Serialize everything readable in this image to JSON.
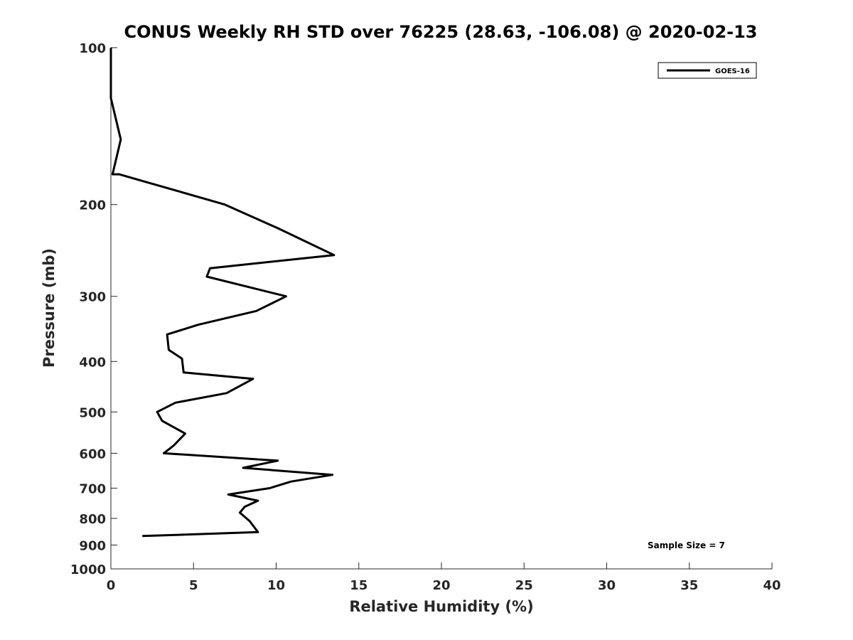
{
  "chart_data": {
    "type": "line",
    "title": "CONUS Weekly RH STD over 76225 (28.63, -106.08) @ 2020-02-13",
    "xlabel": "Relative Humidity (%)",
    "ylabel": "Pressure (mb)",
    "xlim": [
      0,
      40
    ],
    "ylim": [
      100,
      1000
    ],
    "y_scale": "log",
    "y_reversed": true,
    "x_ticks": [
      0,
      5,
      10,
      15,
      20,
      25,
      30,
      35,
      40
    ],
    "y_ticks": [
      100,
      200,
      300,
      400,
      500,
      600,
      700,
      800,
      900,
      1000
    ],
    "grid": false,
    "legend_position": "top-right",
    "series": [
      {
        "name": "GOES-16",
        "color": "#000000",
        "points": [
          [
            0,
            100
          ],
          [
            0,
            125
          ],
          [
            0.6,
            150
          ],
          [
            0.1,
            175
          ],
          [
            0.5,
            175
          ],
          [
            6.9,
            200
          ],
          [
            10.1,
            222
          ],
          [
            13.5,
            250
          ],
          [
            6.0,
            265
          ],
          [
            5.8,
            275
          ],
          [
            10.6,
            300
          ],
          [
            8.8,
            320
          ],
          [
            5.3,
            340
          ],
          [
            3.4,
            355
          ],
          [
            3.5,
            380
          ],
          [
            4.3,
            395
          ],
          [
            4.4,
            420
          ],
          [
            8.6,
            432
          ],
          [
            7.0,
            460
          ],
          [
            3.9,
            480
          ],
          [
            2.8,
            500
          ],
          [
            3.1,
            520
          ],
          [
            4.5,
            550
          ],
          [
            3.8,
            580
          ],
          [
            3.2,
            600
          ],
          [
            10.1,
            620
          ],
          [
            8.0,
            640
          ],
          [
            13.4,
            660
          ],
          [
            10.9,
            680
          ],
          [
            9.6,
            700
          ],
          [
            7.1,
            720
          ],
          [
            8.9,
            740
          ],
          [
            8.1,
            760
          ],
          [
            7.8,
            780
          ],
          [
            8.4,
            810
          ],
          [
            8.9,
            850
          ],
          [
            1.9,
            865
          ]
        ]
      }
    ],
    "annotations": [
      "Sample Size = 7"
    ]
  }
}
